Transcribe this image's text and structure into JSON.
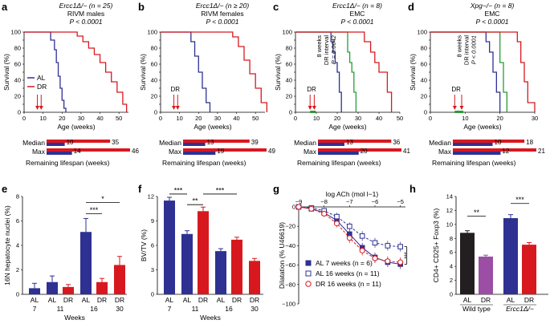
{
  "colors": {
    "blue": "#2e3192",
    "red": "#d7191f",
    "green": "#2a9b3b",
    "black": "#000000",
    "purple": "#9b4ea4",
    "grey": "#aaaaaa",
    "dark": "#231f20"
  },
  "chart_data": [
    {
      "panel": "a",
      "type": "line",
      "title": "Ercc1Δ/− (n = 25)",
      "subtitle": "RIVM males",
      "pvalue": "P < 0.0001",
      "xlabel": "Age (weeks)",
      "ylabel": "Survival (%)",
      "xlim": [
        0,
        55
      ],
      "ylim": [
        0,
        100
      ],
      "xticks": [
        0,
        10,
        20,
        30,
        40,
        50
      ],
      "yticks": [
        0,
        10,
        20,
        30,
        40,
        50,
        60,
        70,
        80,
        90,
        100
      ],
      "legend": [
        "AL",
        "DR"
      ],
      "arrow_label": "",
      "green_bar": false,
      "interval_text": [],
      "series": [
        {
          "name": "AL",
          "color": "blue",
          "x": [
            0,
            12,
            14,
            16,
            17,
            18,
            19,
            20,
            21,
            22
          ],
          "y": [
            100,
            100,
            90,
            78,
            62,
            45,
            30,
            15,
            5,
            0
          ]
        },
        {
          "name": "DR",
          "color": "red",
          "x": [
            0,
            25,
            28,
            31,
            34,
            37,
            40,
            43,
            46,
            49,
            52,
            54
          ],
          "y": [
            100,
            100,
            95,
            88,
            80,
            72,
            62,
            50,
            38,
            25,
            10,
            0
          ]
        }
      ],
      "arrows_x": [
        7,
        9
      ],
      "lifespan_bars": {
        "median_label": "Median",
        "max_label": "Max",
        "median": [
          10,
          35
        ],
        "max": [
          14,
          46
        ],
        "max_scale": 46
      },
      "bars_xlabel": "Remaining lifespan (weeks)"
    },
    {
      "panel": "b",
      "type": "line",
      "title": "Ercc1Δ/− (n ≥ 20)",
      "subtitle": "RIVM females",
      "pvalue": "P < 0.0001",
      "xlabel": "Age (weeks)",
      "ylabel": "Survival (%)",
      "xlim": [
        0,
        55
      ],
      "ylim": [
        0,
        100
      ],
      "xticks": [
        0,
        10,
        20,
        30,
        40,
        50
      ],
      "yticks": [
        0,
        10,
        20,
        30,
        40,
        50,
        60,
        70,
        80,
        90,
        100
      ],
      "legend": [],
      "arrow_label": "DR",
      "green_bar": false,
      "interval_text": [],
      "series": [
        {
          "name": "AL",
          "color": "blue",
          "x": [
            0,
            14,
            16,
            18,
            20,
            22,
            24,
            26
          ],
          "y": [
            100,
            100,
            88,
            70,
            50,
            30,
            12,
            0
          ]
        },
        {
          "name": "DR",
          "color": "red",
          "x": [
            0,
            35,
            38,
            41,
            44,
            47,
            50,
            53,
            56
          ],
          "y": [
            100,
            100,
            94,
            82,
            65,
            48,
            30,
            12,
            0
          ]
        }
      ],
      "arrows_x": [
        7,
        9
      ],
      "lifespan_bars": {
        "median_label": "Median",
        "max_label": "Max",
        "median": [
          13,
          39
        ],
        "max": [
          19,
          49
        ],
        "max_scale": 49
      },
      "bars_xlabel": "Remaining lifespan (weeks)"
    },
    {
      "panel": "c",
      "type": "line",
      "title": "Ercc1Δ/− (n = 8)",
      "subtitle": "EMC",
      "pvalue": "P < 0.0001",
      "xlabel": "Age (weeks)",
      "ylabel": "Survival (%)",
      "xlim": [
        0,
        50
      ],
      "ylim": [
        0,
        100
      ],
      "xticks": [
        0,
        10,
        20,
        30,
        40,
        50
      ],
      "yticks": [
        0,
        10,
        20,
        30,
        40,
        50,
        60,
        70,
        80,
        90,
        100
      ],
      "legend": [],
      "arrow_label": "DR",
      "green_bar": true,
      "interval_text": [
        "8 weeks",
        "DR interval",
        "P = 0.0042"
      ],
      "series": [
        {
          "name": "AL",
          "color": "blue",
          "x": [
            0,
            16,
            17,
            18,
            19,
            20,
            21,
            22
          ],
          "y": [
            100,
            100,
            88,
            75,
            62,
            50,
            25,
            0
          ]
        },
        {
          "name": "DR interval",
          "color": "green",
          "x": [
            0,
            24,
            25,
            26,
            27,
            28,
            29
          ],
          "y": [
            100,
            100,
            75,
            62,
            50,
            25,
            0
          ]
        },
        {
          "name": "DR",
          "color": "red",
          "x": [
            0,
            31,
            33,
            36,
            38,
            40,
            44,
            46
          ],
          "y": [
            100,
            100,
            88,
            75,
            62,
            50,
            25,
            0
          ]
        }
      ],
      "arrows_x": [
        7,
        9
      ],
      "lifespan_bars": {
        "median_label": "Median",
        "max_label": "Max",
        "median": [
          13,
          36
        ],
        "max": [
          20,
          41
        ],
        "max_scale": 41
      },
      "bars_xlabel": "Remaining lifespan (weeks)"
    },
    {
      "panel": "d",
      "type": "line",
      "title": "Xpg−/− (n = 8)",
      "subtitle": "EMC",
      "pvalue": "P < 0.0001",
      "xlabel": "Age (weeks)",
      "ylabel": "Survival (%)",
      "xlim": [
        0,
        30
      ],
      "ylim": [
        0,
        100
      ],
      "xticks": [
        0,
        10,
        20,
        30
      ],
      "yticks": [
        0,
        10,
        20,
        30,
        40,
        50,
        60,
        70,
        80,
        90,
        100
      ],
      "legend": [],
      "arrow_label": "DR",
      "green_bar": true,
      "interval_text": [
        "8 weeks",
        "DR interval",
        "P < 0.0001"
      ],
      "series": [
        {
          "name": "AL",
          "color": "blue",
          "x": [
            0,
            15,
            16,
            17,
            18,
            19,
            20
          ],
          "y": [
            100,
            100,
            88,
            75,
            50,
            25,
            0
          ]
        },
        {
          "name": "DR interval",
          "color": "green",
          "x": [
            0,
            19,
            20,
            21,
            22
          ],
          "y": [
            100,
            100,
            62,
            25,
            0
          ]
        },
        {
          "name": "DR",
          "color": "red",
          "x": [
            0,
            23,
            25,
            26,
            27,
            28,
            30
          ],
          "y": [
            100,
            100,
            88,
            62,
            38,
            12,
            0
          ]
        }
      ],
      "arrows_x": [
        7,
        9
      ],
      "lifespan_bars": {
        "median_label": "Median",
        "max_label": "Max",
        "median": [
          10,
          18
        ],
        "max": [
          12,
          21
        ],
        "max_scale": 21
      },
      "bars_xlabel": "Remaining lifespan (weeks)"
    },
    {
      "panel": "e",
      "type": "bar",
      "ylabel": "16N hepatocyte nuclei (%)",
      "xlabel": "Weeks",
      "ylim": [
        0,
        8
      ],
      "yticks": [
        0,
        2,
        4,
        6,
        8
      ],
      "bars": [
        {
          "label": "AL",
          "group": "7",
          "value": 0.5,
          "err": 0.4,
          "color": "blue"
        },
        {
          "label": "AL",
          "group": "11",
          "value": 1.0,
          "err": 0.5,
          "color": "blue"
        },
        {
          "label": "DR",
          "group": "11",
          "value": 0.6,
          "err": 0.2,
          "color": "red"
        },
        {
          "label": "AL",
          "group": "16",
          "value": 5.1,
          "err": 1.1,
          "color": "blue"
        },
        {
          "label": "DR",
          "group": "16",
          "value": 1.0,
          "err": 0.3,
          "color": "red"
        },
        {
          "label": "DR",
          "group": "30",
          "value": 2.4,
          "err": 0.7,
          "color": "red"
        }
      ],
      "groups": [
        {
          "label": "7",
          "bars": [
            0
          ]
        },
        {
          "label": "11",
          "bars": [
            1,
            2
          ]
        },
        {
          "label": "16",
          "bars": [
            3,
            4
          ]
        },
        {
          "label": "30",
          "bars": [
            5
          ]
        }
      ],
      "significance": [
        {
          "from": 3,
          "to": 4,
          "y": 6.6,
          "label": "***"
        },
        {
          "from": 3,
          "to": 5,
          "y": 7.5,
          "label": "*"
        }
      ]
    },
    {
      "panel": "f",
      "type": "bar",
      "ylabel": "BV/TV (%)",
      "xlabel": "Weeks",
      "ylim": [
        0,
        12
      ],
      "yticks": [
        0,
        3,
        6,
        9,
        12
      ],
      "bars": [
        {
          "label": "AL",
          "group": "7",
          "value": 11.5,
          "err": 0.4,
          "color": "blue"
        },
        {
          "label": "AL",
          "group": "11",
          "value": 7.4,
          "err": 0.4,
          "color": "blue"
        },
        {
          "label": "DR",
          "group": "11",
          "value": 10.2,
          "err": 0.5,
          "color": "red"
        },
        {
          "label": "AL",
          "group": "16",
          "value": 5.3,
          "err": 0.3,
          "color": "blue"
        },
        {
          "label": "DR",
          "group": "16",
          "value": 6.7,
          "err": 0.3,
          "color": "red"
        },
        {
          "label": "DR",
          "group": "30",
          "value": 4.1,
          "err": 0.3,
          "color": "red"
        }
      ],
      "groups": [
        {
          "label": "7",
          "bars": [
            0
          ]
        },
        {
          "label": "11",
          "bars": [
            1,
            2
          ]
        },
        {
          "label": "16",
          "bars": [
            3,
            4
          ]
        },
        {
          "label": "30",
          "bars": [
            5
          ]
        }
      ],
      "significance": [
        {
          "from": 0,
          "to": 1,
          "y": 12.3,
          "label": "***"
        },
        {
          "from": 1,
          "to": 2,
          "y": 11.0,
          "label": "**"
        },
        {
          "from": 2,
          "to": 4,
          "y": 12.3,
          "label": "***"
        }
      ]
    },
    {
      "panel": "g",
      "type": "line",
      "top_xlabel": "log ACh (mol l−1)",
      "ylabel": "Dilatation (% U46619)",
      "xlim": [
        -9,
        -4.8
      ],
      "ylim": [
        -100,
        0
      ],
      "xticks": [
        -9,
        -8,
        -7,
        -6,
        -5
      ],
      "yticks": [
        0,
        -20,
        -40,
        -60,
        -80,
        -100
      ],
      "significance": "***",
      "series": [
        {
          "name": "AL 7 weeks (n = 6)",
          "marker": "square-filled",
          "color": "blue",
          "x": [
            -9,
            -8.5,
            -8,
            -7.5,
            -7,
            -6.5,
            -6,
            -5.5,
            -5
          ],
          "y": [
            0,
            -2,
            -6,
            -14,
            -28,
            -42,
            -52,
            -57,
            -59
          ],
          "err": [
            1,
            2,
            3,
            4,
            5,
            5,
            5,
            5,
            5
          ]
        },
        {
          "name": "AL 16 weeks (n = 11)",
          "marker": "square-open",
          "color": "blue",
          "x": [
            -9,
            -8.5,
            -8,
            -7.5,
            -7,
            -6.5,
            -6,
            -5.5,
            -5
          ],
          "y": [
            0,
            -1,
            -4,
            -10,
            -20,
            -30,
            -37,
            -40,
            -41
          ],
          "err": [
            1,
            2,
            3,
            4,
            4,
            5,
            5,
            5,
            5
          ]
        },
        {
          "name": "DR 16 weeks (n = 11)",
          "marker": "circle-open",
          "color": "red",
          "x": [
            -9,
            -8.5,
            -8,
            -7.5,
            -7,
            -6.5,
            -6,
            -5.5,
            -5
          ],
          "y": [
            0,
            -2,
            -7,
            -17,
            -32,
            -45,
            -53,
            -56,
            -57
          ],
          "err": [
            1,
            2,
            3,
            4,
            5,
            5,
            5,
            5,
            5
          ]
        }
      ]
    },
    {
      "panel": "h",
      "type": "bar",
      "ylabel": "CD4+ CD25+ Foxp3 (%)",
      "ylim": [
        0,
        14
      ],
      "yticks": [
        0,
        2,
        4,
        6,
        8,
        10,
        12,
        14
      ],
      "bars": [
        {
          "label": "AL",
          "value": 8.8,
          "err": 0.3,
          "color": "dark"
        },
        {
          "label": "DR",
          "value": 5.4,
          "err": 0.2,
          "color": "purple"
        },
        {
          "label": "AL",
          "value": 10.9,
          "err": 0.5,
          "color": "blue"
        },
        {
          "label": "DR",
          "value": 7.1,
          "err": 0.3,
          "color": "red"
        }
      ],
      "groups": [
        {
          "label": "Wild type",
          "bars": [
            0,
            1
          ]
        },
        {
          "label": "Ercc1Δ/−",
          "bars": [
            2,
            3
          ]
        }
      ],
      "significance": [
        {
          "from": 0,
          "to": 1,
          "y": 11.2,
          "label": "**"
        },
        {
          "from": 2,
          "to": 3,
          "y": 13.0,
          "label": "***"
        }
      ]
    }
  ]
}
